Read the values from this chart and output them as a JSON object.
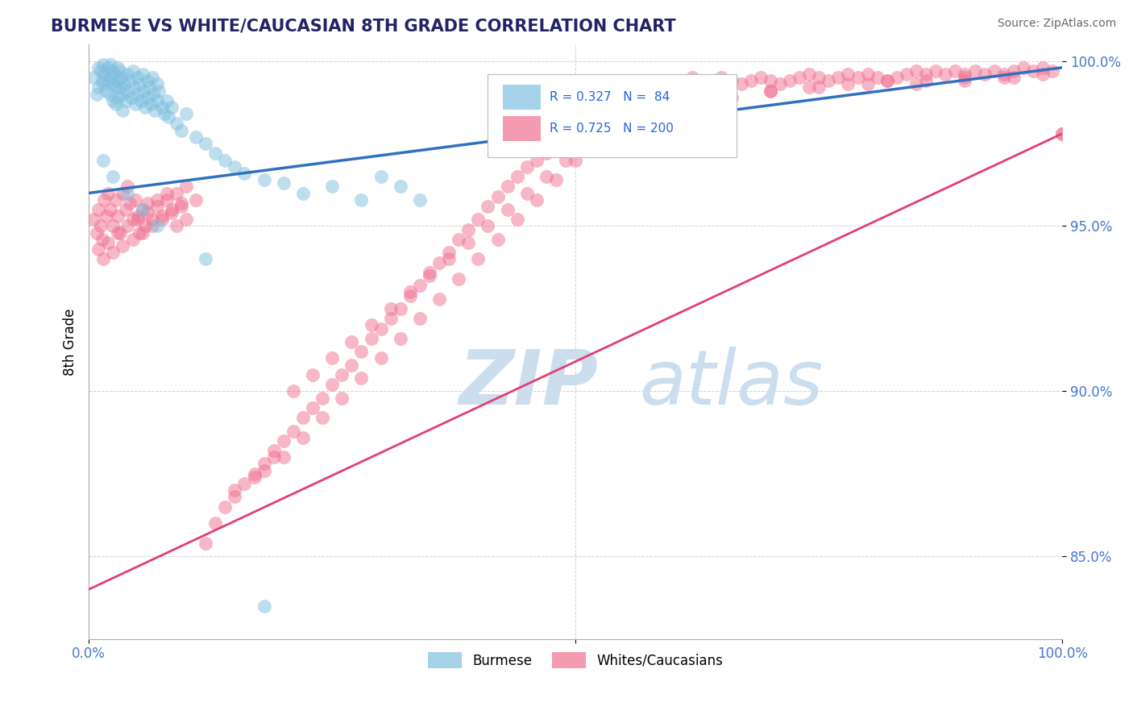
{
  "title": "BURMESE VS WHITE/CAUCASIAN 8TH GRADE CORRELATION CHART",
  "source": "Source: ZipAtlas.com",
  "ylabel": "8th Grade",
  "ytick_values": [
    0.85,
    0.9,
    0.95,
    1.0
  ],
  "xlim": [
    0.0,
    1.0
  ],
  "ylim": [
    0.825,
    1.005
  ],
  "blue_R": 0.327,
  "blue_N": 84,
  "pink_R": 0.725,
  "pink_N": 200,
  "blue_color": "#7fbfdf",
  "pink_color": "#f07090",
  "blue_line_color": "#3070c0",
  "pink_line_color": "#e04070",
  "watermark_zip": "ZIP",
  "watermark_atlas": "atlas",
  "watermark_color": "#ccdded",
  "legend_labels": [
    "Burmese",
    "Whites/Caucasians"
  ],
  "blue_line_x0": 0.0,
  "blue_line_y0": 0.96,
  "blue_line_x1": 1.0,
  "blue_line_y1": 0.998,
  "pink_line_x0": 0.0,
  "pink_line_y0": 0.84,
  "pink_line_x1": 1.0,
  "pink_line_y1": 0.978,
  "blue_scatter_x": [
    0.005,
    0.008,
    0.01,
    0.01,
    0.012,
    0.014,
    0.015,
    0.015,
    0.016,
    0.018,
    0.02,
    0.02,
    0.022,
    0.022,
    0.022,
    0.024,
    0.025,
    0.025,
    0.026,
    0.028,
    0.028,
    0.03,
    0.03,
    0.03,
    0.032,
    0.032,
    0.034,
    0.035,
    0.035,
    0.036,
    0.038,
    0.04,
    0.04,
    0.042,
    0.044,
    0.045,
    0.046,
    0.048,
    0.05,
    0.05,
    0.052,
    0.054,
    0.055,
    0.056,
    0.058,
    0.06,
    0.06,
    0.062,
    0.064,
    0.065,
    0.066,
    0.068,
    0.07,
    0.07,
    0.072,
    0.075,
    0.078,
    0.08,
    0.082,
    0.085,
    0.09,
    0.095,
    0.1,
    0.11,
    0.12,
    0.13,
    0.14,
    0.15,
    0.16,
    0.18,
    0.2,
    0.22,
    0.25,
    0.28,
    0.3,
    0.32,
    0.34,
    0.015,
    0.025,
    0.04,
    0.055,
    0.07,
    0.12,
    0.18
  ],
  "blue_scatter_y": [
    0.995,
    0.99,
    0.998,
    0.992,
    0.997,
    0.994,
    0.999,
    0.993,
    0.996,
    0.991,
    0.998,
    0.994,
    0.999,
    0.995,
    0.99,
    0.997,
    0.993,
    0.988,
    0.996,
    0.992,
    0.987,
    0.998,
    0.994,
    0.989,
    0.997,
    0.992,
    0.995,
    0.99,
    0.985,
    0.993,
    0.988,
    0.996,
    0.991,
    0.994,
    0.989,
    0.997,
    0.992,
    0.987,
    0.995,
    0.99,
    0.993,
    0.988,
    0.996,
    0.991,
    0.986,
    0.994,
    0.989,
    0.992,
    0.987,
    0.995,
    0.99,
    0.985,
    0.993,
    0.988,
    0.991,
    0.986,
    0.984,
    0.988,
    0.983,
    0.986,
    0.981,
    0.979,
    0.984,
    0.977,
    0.975,
    0.972,
    0.97,
    0.968,
    0.966,
    0.964,
    0.963,
    0.96,
    0.962,
    0.958,
    0.965,
    0.962,
    0.958,
    0.97,
    0.965,
    0.96,
    0.955,
    0.95,
    0.94,
    0.835
  ],
  "pink_scatter_x": [
    0.005,
    0.008,
    0.01,
    0.012,
    0.014,
    0.016,
    0.018,
    0.02,
    0.022,
    0.025,
    0.028,
    0.03,
    0.032,
    0.035,
    0.038,
    0.04,
    0.042,
    0.045,
    0.048,
    0.05,
    0.052,
    0.055,
    0.058,
    0.06,
    0.065,
    0.07,
    0.075,
    0.08,
    0.085,
    0.09,
    0.095,
    0.1,
    0.01,
    0.015,
    0.02,
    0.025,
    0.03,
    0.035,
    0.04,
    0.045,
    0.05,
    0.055,
    0.06,
    0.065,
    0.07,
    0.075,
    0.08,
    0.085,
    0.09,
    0.095,
    0.1,
    0.11,
    0.12,
    0.13,
    0.14,
    0.15,
    0.16,
    0.17,
    0.18,
    0.19,
    0.2,
    0.21,
    0.22,
    0.23,
    0.24,
    0.25,
    0.26,
    0.27,
    0.28,
    0.29,
    0.3,
    0.31,
    0.32,
    0.33,
    0.34,
    0.35,
    0.36,
    0.37,
    0.38,
    0.39,
    0.4,
    0.41,
    0.42,
    0.43,
    0.44,
    0.45,
    0.46,
    0.47,
    0.48,
    0.49,
    0.5,
    0.51,
    0.52,
    0.53,
    0.54,
    0.55,
    0.56,
    0.57,
    0.58,
    0.59,
    0.6,
    0.61,
    0.62,
    0.63,
    0.64,
    0.65,
    0.66,
    0.67,
    0.68,
    0.69,
    0.7,
    0.71,
    0.72,
    0.73,
    0.74,
    0.75,
    0.76,
    0.77,
    0.78,
    0.79,
    0.8,
    0.81,
    0.82,
    0.83,
    0.84,
    0.85,
    0.86,
    0.87,
    0.88,
    0.89,
    0.9,
    0.91,
    0.92,
    0.93,
    0.94,
    0.95,
    0.96,
    0.97,
    0.98,
    0.99,
    1.0,
    0.55,
    0.6,
    0.65,
    0.7,
    0.75,
    0.8,
    0.85,
    0.9,
    0.95,
    1.0,
    0.58,
    0.62,
    0.66,
    0.7,
    0.74,
    0.78,
    0.82,
    0.86,
    0.9,
    0.94,
    0.98,
    0.21,
    0.23,
    0.25,
    0.27,
    0.29,
    0.31,
    0.33,
    0.35,
    0.37,
    0.39,
    0.41,
    0.43,
    0.45,
    0.47,
    0.49,
    0.51,
    0.53,
    0.55,
    0.18,
    0.2,
    0.22,
    0.24,
    0.26,
    0.28,
    0.3,
    0.32,
    0.34,
    0.36,
    0.38,
    0.4,
    0.42,
    0.44,
    0.46,
    0.48,
    0.5,
    0.15,
    0.17,
    0.19
  ],
  "pink_scatter_y": [
    0.952,
    0.948,
    0.955,
    0.95,
    0.946,
    0.958,
    0.953,
    0.96,
    0.955,
    0.95,
    0.958,
    0.953,
    0.948,
    0.96,
    0.955,
    0.962,
    0.957,
    0.952,
    0.958,
    0.953,
    0.948,
    0.955,
    0.95,
    0.957,
    0.952,
    0.958,
    0.953,
    0.96,
    0.955,
    0.95,
    0.957,
    0.952,
    0.943,
    0.94,
    0.945,
    0.942,
    0.948,
    0.944,
    0.95,
    0.946,
    0.952,
    0.948,
    0.954,
    0.95,
    0.956,
    0.952,
    0.958,
    0.954,
    0.96,
    0.956,
    0.962,
    0.958,
    0.854,
    0.86,
    0.865,
    0.87,
    0.872,
    0.875,
    0.878,
    0.882,
    0.885,
    0.888,
    0.892,
    0.895,
    0.898,
    0.902,
    0.905,
    0.908,
    0.912,
    0.916,
    0.919,
    0.922,
    0.925,
    0.929,
    0.932,
    0.936,
    0.939,
    0.942,
    0.946,
    0.949,
    0.952,
    0.956,
    0.959,
    0.962,
    0.965,
    0.968,
    0.97,
    0.972,
    0.975,
    0.977,
    0.979,
    0.981,
    0.983,
    0.985,
    0.987,
    0.988,
    0.989,
    0.99,
    0.991,
    0.992,
    0.993,
    0.994,
    0.995,
    0.993,
    0.994,
    0.995,
    0.994,
    0.993,
    0.994,
    0.995,
    0.994,
    0.993,
    0.994,
    0.995,
    0.996,
    0.995,
    0.994,
    0.995,
    0.996,
    0.995,
    0.996,
    0.995,
    0.994,
    0.995,
    0.996,
    0.997,
    0.996,
    0.997,
    0.996,
    0.997,
    0.996,
    0.997,
    0.996,
    0.997,
    0.996,
    0.997,
    0.998,
    0.997,
    0.998,
    0.997,
    0.978,
    0.987,
    0.989,
    0.99,
    0.991,
    0.992,
    0.993,
    0.993,
    0.994,
    0.995,
    0.978,
    0.985,
    0.987,
    0.989,
    0.991,
    0.992,
    0.993,
    0.994,
    0.994,
    0.995,
    0.995,
    0.996,
    0.9,
    0.905,
    0.91,
    0.915,
    0.92,
    0.925,
    0.93,
    0.935,
    0.94,
    0.945,
    0.95,
    0.955,
    0.96,
    0.965,
    0.97,
    0.975,
    0.978,
    0.98,
    0.876,
    0.88,
    0.886,
    0.892,
    0.898,
    0.904,
    0.91,
    0.916,
    0.922,
    0.928,
    0.934,
    0.94,
    0.946,
    0.952,
    0.958,
    0.964,
    0.97,
    0.868,
    0.874,
    0.88
  ]
}
